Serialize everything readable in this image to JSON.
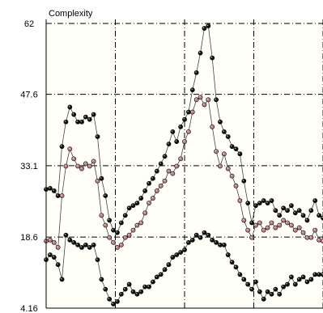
{
  "chart_data": {
    "type": "line",
    "title": "Complexity",
    "xlabel": "",
    "ylabel": "",
    "ylim": [
      4.16,
      62
    ],
    "y_ticks": [
      4.16,
      18.6,
      33.1,
      47.6,
      62
    ],
    "y_tick_labels": [
      "4.16",
      "18.6",
      "33.1",
      "47.6",
      "62"
    ],
    "x_range": [
      0,
      140
    ],
    "x_grid": [
      0,
      35,
      70,
      105,
      140
    ],
    "grid": true,
    "grid_style": "dash-dot",
    "plot_background": "#fffff8",
    "series": [
      {
        "color": "#111111",
        "x": [
          0,
          2,
          4,
          6,
          8,
          10,
          12,
          14,
          16,
          18,
          20,
          22,
          24,
          26,
          28,
          30,
          32,
          34,
          36,
          38,
          40,
          42,
          44,
          46,
          48,
          50,
          52,
          54,
          56,
          58,
          60,
          62,
          64,
          66,
          68,
          70,
          72,
          74,
          76,
          78,
          80,
          82,
          84,
          86,
          88,
          90,
          92,
          94,
          96,
          98,
          100,
          102,
          104,
          106,
          108,
          110,
          112,
          114,
          116,
          118,
          120,
          122,
          124,
          126,
          128,
          130,
          132,
          134,
          136,
          138,
          140
        ],
        "y": [
          28.3,
          28.5,
          28.0,
          27.0,
          37.0,
          42.0,
          45.0,
          43.5,
          42.0,
          42.0,
          43.0,
          42.5,
          43.5,
          39.0,
          30.5,
          27.0,
          22.0,
          20.0,
          19.5,
          21.5,
          23.0,
          24.5,
          25.0,
          25.5,
          26.5,
          28.0,
          29.5,
          30.5,
          32.0,
          33.5,
          35.0,
          37.5,
          40.0,
          38.0,
          41.0,
          42.5,
          44.0,
          48.5,
          52.0,
          56.0,
          61.0,
          61.5,
          55.0,
          46.5,
          42.0,
          40.0,
          39.0,
          37.0,
          36.5,
          35.5,
          30.0,
          25.5,
          21.5,
          25.0,
          25.5,
          26.0,
          25.5,
          26.0,
          24.0,
          23.0,
          24.5,
          24.0,
          25.0,
          23.5,
          24.0,
          23.0,
          22.0,
          24.0,
          26.0,
          23.0,
          22.5
        ]
      },
      {
        "color": "#c08080",
        "x": [
          0,
          2,
          4,
          6,
          8,
          10,
          12,
          14,
          16,
          18,
          20,
          22,
          24,
          26,
          28,
          30,
          32,
          34,
          36,
          38,
          40,
          42,
          44,
          46,
          48,
          50,
          52,
          54,
          56,
          58,
          60,
          62,
          64,
          66,
          68,
          70,
          72,
          74,
          76,
          78,
          80,
          82,
          84,
          86,
          88,
          90,
          92,
          94,
          96,
          98,
          100,
          102,
          104,
          106,
          108,
          110,
          112,
          114,
          116,
          118,
          120,
          122,
          124,
          126,
          128,
          130,
          132,
          134,
          136,
          138,
          140
        ],
        "y": [
          17.8,
          18.0,
          17.5,
          16.5,
          27.0,
          33.0,
          36.5,
          34.5,
          33.0,
          32.5,
          33.5,
          33.0,
          34.0,
          30.0,
          23.0,
          21.0,
          18.5,
          17.5,
          16.5,
          17.0,
          18.5,
          19.0,
          20.0,
          21.0,
          21.5,
          23.5,
          25.5,
          26.5,
          28.0,
          29.0,
          30.0,
          32.0,
          31.5,
          33.0,
          34.5,
          38.0,
          40.0,
          44.0,
          46.5,
          47.0,
          45.5,
          46.5,
          41.0,
          36.0,
          33.0,
          35.5,
          32.5,
          31.0,
          29.0,
          26.0,
          22.0,
          20.0,
          18.5,
          21.0,
          21.5,
          20.0,
          20.5,
          21.5,
          20.5,
          21.0,
          22.0,
          21.5,
          21.0,
          20.0,
          20.5,
          19.5,
          18.5,
          18.5,
          20.0,
          18.0,
          17.8
        ]
      },
      {
        "color": "#111111",
        "x": [
          0,
          2,
          4,
          6,
          8,
          10,
          12,
          14,
          16,
          18,
          20,
          22,
          24,
          26,
          28,
          30,
          32,
          34,
          36,
          38,
          40,
          42,
          44,
          46,
          48,
          50,
          52,
          54,
          56,
          58,
          60,
          62,
          64,
          66,
          68,
          70,
          72,
          74,
          76,
          78,
          80,
          82,
          84,
          86,
          88,
          90,
          92,
          94,
          96,
          98,
          100,
          102,
          104,
          106,
          108,
          110,
          112,
          114,
          116,
          118,
          120,
          122,
          124,
          126,
          128,
          130,
          132,
          134,
          136,
          138,
          140
        ],
        "y": [
          14.0,
          15.0,
          14.5,
          13.0,
          10.0,
          19.0,
          18.0,
          17.5,
          17.0,
          16.5,
          17.0,
          16.5,
          17.0,
          14.0,
          10.0,
          8.0,
          6.0,
          5.0,
          5.5,
          7.0,
          8.0,
          9.0,
          7.5,
          7.0,
          7.5,
          8.5,
          8.5,
          9.5,
          10.5,
          11.0,
          12.0,
          13.0,
          14.5,
          15.0,
          15.5,
          16.0,
          17.5,
          18.0,
          19.0,
          18.5,
          19.5,
          19.0,
          18.0,
          17.5,
          17.0,
          17.0,
          15.0,
          13.5,
          12.5,
          11.0,
          10.0,
          9.0,
          8.0,
          9.5,
          7.5,
          6.0,
          7.5,
          7.0,
          8.0,
          7.0,
          8.5,
          9.0,
          10.5,
          9.0,
          10.0,
          10.5,
          9.5,
          10.0,
          11.0,
          11.0,
          11.0
        ]
      }
    ]
  }
}
